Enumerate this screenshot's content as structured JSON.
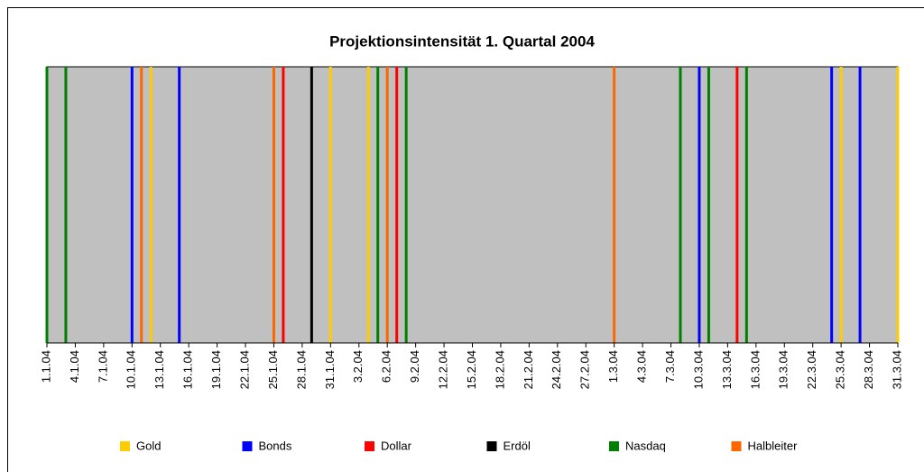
{
  "chart_data": {
    "type": "event",
    "title": "Projektionsintensität 1. Quartal 2004",
    "xlim": [
      "1.1.04",
      "31.3.04"
    ],
    "xticks": [
      "1.1.04",
      "4.1.04",
      "7.1.04",
      "10.1.04",
      "13.1.04",
      "16.1.04",
      "19.1.04",
      "22.1.04",
      "25.1.04",
      "28.1.04",
      "31.1.04",
      "3.2.04",
      "6.2.04",
      "9.2.04",
      "12.2.04",
      "15.2.04",
      "18.2.04",
      "21.2.04",
      "24.2.04",
      "27.2.04",
      "1.3.04",
      "4.3.04",
      "7.3.04",
      "10.3.04",
      "13.3.04",
      "16.3.04",
      "19.3.04",
      "22.3.04",
      "25.3.04",
      "28.3.04",
      "31.3.04"
    ],
    "background": "#c0c0c0",
    "legend": "bottom",
    "series": [
      {
        "name": "Gold",
        "color": "#ffcc00",
        "x": [
          "12.1.04",
          "31.1.04",
          "4.2.04",
          "25.3.04",
          "31.3.04"
        ]
      },
      {
        "name": "Bonds",
        "color": "#0000ff",
        "x": [
          "10.1.04",
          "15.1.04",
          "10.3.04",
          "24.3.04",
          "27.3.04"
        ]
      },
      {
        "name": "Dollar",
        "color": "#ff0000",
        "x": [
          "26.1.04",
          "7.2.04",
          "14.3.04"
        ]
      },
      {
        "name": "Erdöl",
        "color": "#000000",
        "x": [
          "29.1.04"
        ]
      },
      {
        "name": "Nasdaq",
        "color": "#008000",
        "x": [
          "1.1.04",
          "3.1.04",
          "5.2.04",
          "8.2.04",
          "8.3.04",
          "11.3.04",
          "15.3.04"
        ]
      },
      {
        "name": "Halbleiter",
        "color": "#ff6600",
        "x": [
          "11.1.04",
          "25.1.04",
          "6.2.04",
          "1.3.04"
        ]
      }
    ]
  }
}
